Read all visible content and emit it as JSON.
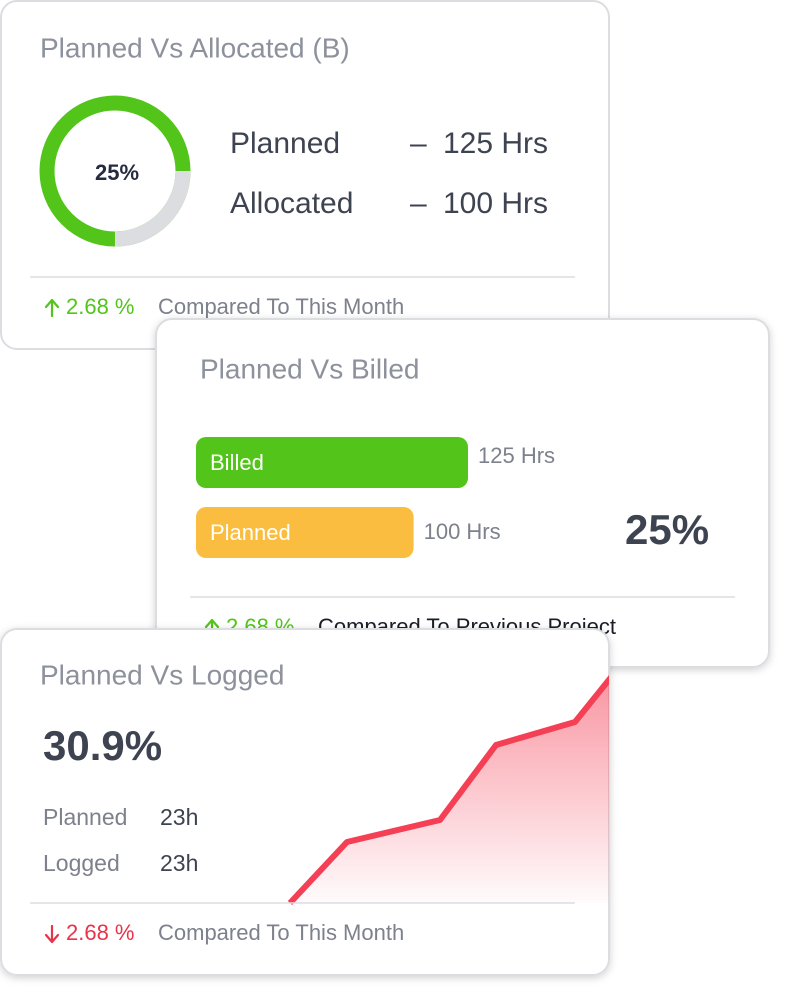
{
  "cards": [
    {
      "title": "Planned Vs Allocated (B)",
      "gauge": {
        "value": 25,
        "label": "25%"
      },
      "rows": [
        {
          "label": "Planned",
          "separator": "–",
          "value": "125 Hrs"
        },
        {
          "label": "Allocated",
          "separator": "–",
          "value": "100 Hrs"
        }
      ],
      "footer": {
        "change": "2.68 %",
        "text": "Compared To This Month",
        "direction": "up"
      }
    },
    {
      "title": "Planned Vs Billed",
      "bars": [
        {
          "label": "Billed",
          "value": 125,
          "value_label": "125 Hrs",
          "color": "#52c41a"
        },
        {
          "label": "Planned",
          "value": 100,
          "value_label": "100 Hrs",
          "color": "#fbbd3f"
        }
      ],
      "percent": "25%",
      "footer": {
        "change": "2.68 %",
        "text": "Compared To Previous Project",
        "direction": "up"
      }
    },
    {
      "title": "Planned Vs Logged",
      "percent": "30.9%",
      "rows": [
        {
          "label": "Planned",
          "value": "23h"
        },
        {
          "label": "Logged",
          "value": "23h"
        }
      ],
      "footer": {
        "change": "2.68 %",
        "text": "Compared To This Month",
        "direction": "down"
      }
    }
  ]
}
